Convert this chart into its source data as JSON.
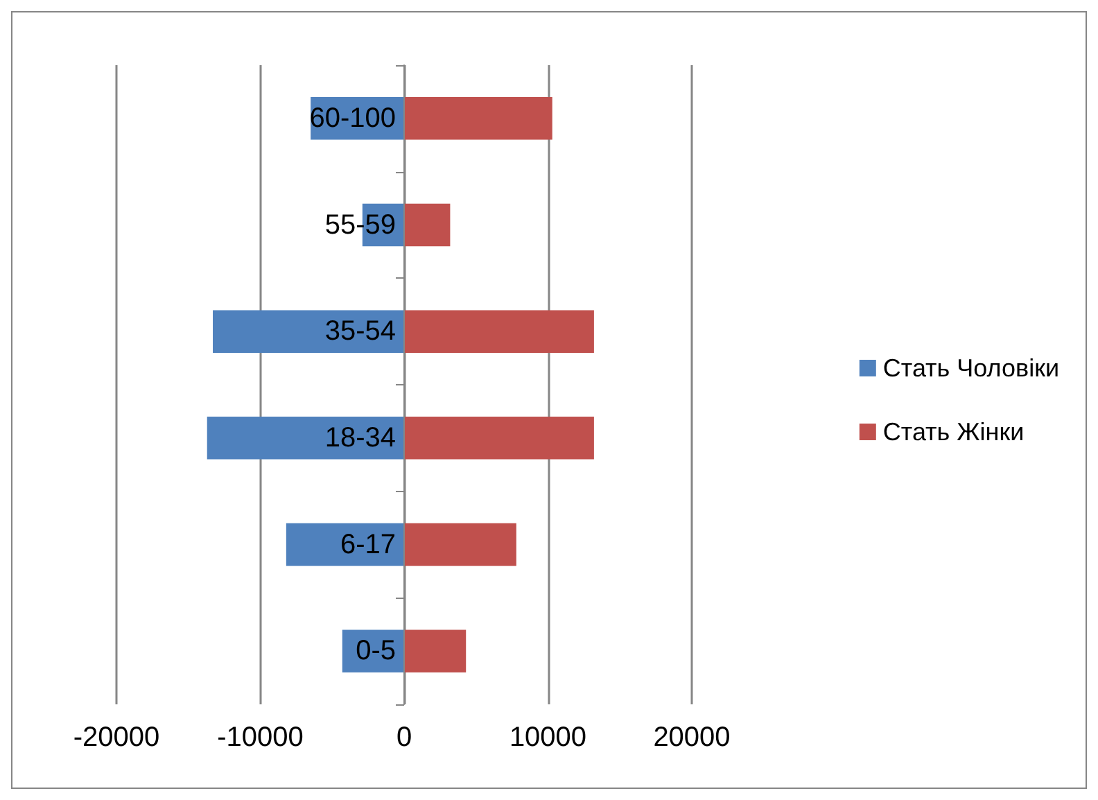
{
  "chart_data": {
    "type": "bar",
    "orientation": "horizontal",
    "categories": [
      "60-100",
      "55-59",
      "35-54",
      "18-34",
      "6-17",
      "0-5"
    ],
    "series": [
      {
        "name": "Стать Чоловіки",
        "color": "#4f81bd",
        "values": [
          -6500,
          -2900,
          -13300,
          -13700,
          -8200,
          -4300
        ]
      },
      {
        "name": "Стать Жінки",
        "color": "#c0504d",
        "values": [
          10300,
          3200,
          13200,
          13200,
          7800,
          4300
        ]
      }
    ],
    "stacked": true,
    "xlim": [
      -20000,
      20000
    ],
    "xticks": [
      -20000,
      -10000,
      0,
      10000,
      20000
    ],
    "grid": "x",
    "legend": "right"
  }
}
